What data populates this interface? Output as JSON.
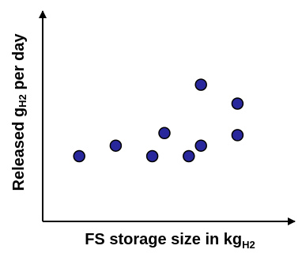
{
  "chart_data": {
    "type": "scatter",
    "title": "",
    "xlabel": {
      "main": "FS storage size in kg",
      "subscript": "H2"
    },
    "ylabel": {
      "before": "Released g",
      "subscript": "H2",
      "after": " per day"
    },
    "xlim": [
      0,
      10
    ],
    "ylim": [
      0,
      10
    ],
    "ticks": false,
    "grid": false,
    "legend": "none",
    "series": [
      {
        "x": [
          1.5,
          3.0,
          4.5,
          5.0,
          6.0,
          6.5,
          6.5,
          8.0,
          8.0
        ],
        "y": [
          3.1,
          3.6,
          3.1,
          4.2,
          3.1,
          3.6,
          6.5,
          5.6,
          4.1
        ]
      }
    ],
    "colors": {
      "marker_fill": "#28289c",
      "marker_stroke": "#000000",
      "axis": "#000000"
    }
  }
}
